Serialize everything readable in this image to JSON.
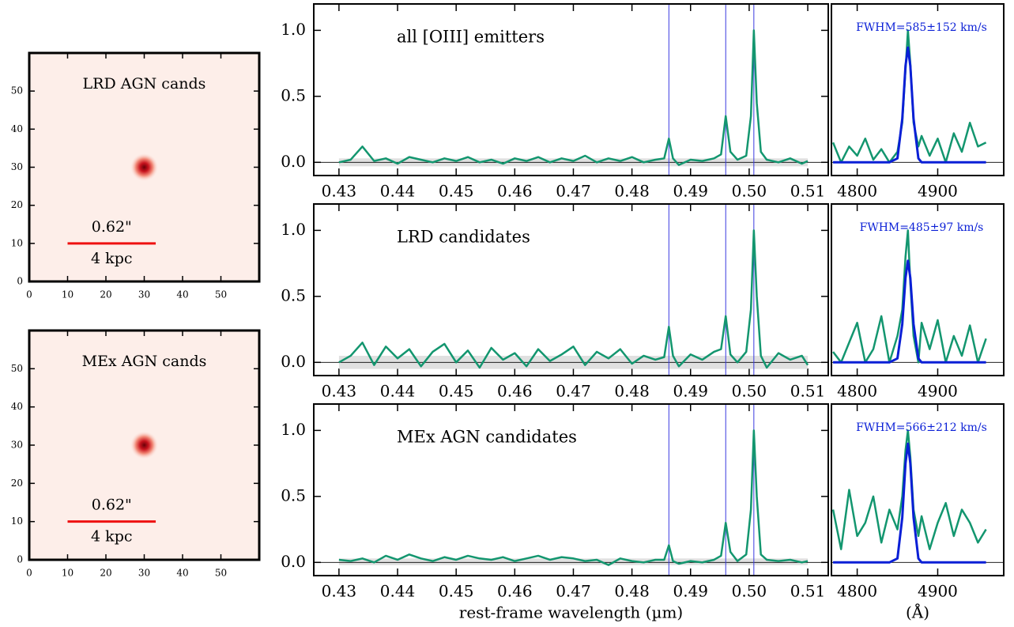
{
  "chart_data": [
    {
      "type": "image",
      "title": "LRD AGN cands",
      "xlim": [
        0,
        60
      ],
      "ylim": [
        0,
        60
      ],
      "xticks": [
        0,
        10,
        20,
        30,
        40,
        50
      ],
      "yticks": [
        0,
        10,
        20,
        30,
        40,
        50
      ],
      "source": {
        "x": 30,
        "y": 30
      },
      "scalebar": {
        "x": [
          10,
          33
        ],
        "y": 10,
        "label_top": "0.62\"",
        "label_bottom": "4 kpc",
        "color": "#ee1111"
      }
    },
    {
      "type": "image",
      "title": "MEx AGN cands",
      "xlim": [
        0,
        60
      ],
      "ylim": [
        0,
        60
      ],
      "xticks": [
        0,
        10,
        20,
        30,
        40,
        50
      ],
      "yticks": [
        0,
        10,
        20,
        30,
        40,
        50
      ],
      "source": {
        "x": 30,
        "y": 30
      },
      "scalebar": {
        "x": [
          10,
          33
        ],
        "y": 10,
        "label_top": "0.62\"",
        "label_bottom": "4 kpc",
        "color": "#ee1111"
      }
    },
    {
      "type": "line",
      "title": "all [OIII] emitters",
      "xlim": [
        0.4257,
        0.5135
      ],
      "ylim": [
        -0.1,
        1.2
      ],
      "xticks": [
        0.43,
        0.44,
        0.45,
        0.46,
        0.47,
        0.48,
        0.49,
        {
          "value": 0.5,
          "label": "0.50"
        },
        0.51
      ],
      "yticks": [
        {
          "value": 0,
          "label": "0.0"
        },
        {
          "value": 0.5,
          "label": "0.5"
        },
        {
          "value": 1,
          "label": "1.0"
        }
      ],
      "vlines": [
        0.4863,
        0.496,
        0.5008
      ],
      "band": {
        "x": [
          0.43,
          0.51
        ],
        "y": [
          -0.03,
          0.03
        ]
      },
      "color": "#13966f",
      "x": [
        0.43,
        0.432,
        0.434,
        0.436,
        0.438,
        0.44,
        0.442,
        0.444,
        0.446,
        0.448,
        0.45,
        0.452,
        0.454,
        0.456,
        0.458,
        0.46,
        0.462,
        0.464,
        0.466,
        0.468,
        0.47,
        0.472,
        0.474,
        0.476,
        0.478,
        0.48,
        0.482,
        0.484,
        0.4855,
        0.4863,
        0.487,
        0.488,
        0.49,
        0.492,
        0.494,
        0.4952,
        0.496,
        0.4968,
        0.498,
        0.4995,
        0.5003,
        0.5008,
        0.5013,
        0.502,
        0.503,
        0.505,
        0.507,
        0.509,
        0.51
      ],
      "values": [
        0.0,
        0.02,
        0.12,
        0.01,
        0.03,
        -0.01,
        0.04,
        0.02,
        0.0,
        0.03,
        0.01,
        0.04,
        0.0,
        0.02,
        -0.01,
        0.03,
        0.01,
        0.04,
        0.0,
        0.03,
        0.01,
        0.05,
        0.0,
        0.03,
        0.01,
        0.04,
        0.0,
        0.02,
        0.03,
        0.18,
        0.03,
        -0.02,
        0.02,
        0.01,
        0.03,
        0.06,
        0.35,
        0.08,
        0.02,
        0.05,
        0.35,
        1.0,
        0.45,
        0.08,
        0.02,
        0.0,
        0.03,
        -0.01,
        0.01
      ]
    },
    {
      "type": "zoom",
      "annotation": "FWHM=585±152 km/s",
      "xlim": [
        4768,
        4982
      ],
      "ylim": [
        -0.1,
        1.2
      ],
      "xticks": [
        4800,
        4900
      ],
      "x": [
        4770,
        4780,
        4790,
        4800,
        4810,
        4820,
        4830,
        4840,
        4850,
        4856,
        4860,
        4863,
        4866,
        4870,
        4876,
        4880,
        4890,
        4900,
        4910,
        4920,
        4930,
        4940,
        4950,
        4960
      ],
      "series": [
        {
          "color": "#13966f",
          "values": [
            0.15,
            0.0,
            0.12,
            0.05,
            0.18,
            0.02,
            0.1,
            0.0,
            0.08,
            0.3,
            0.7,
            1.0,
            0.75,
            0.3,
            0.12,
            0.2,
            0.05,
            0.18,
            0.0,
            0.22,
            0.08,
            0.3,
            0.12,
            0.15
          ]
        },
        {
          "color": "#0a1fd6",
          "values": [
            0,
            0,
            0,
            0,
            0,
            0,
            0,
            0,
            0.03,
            0.33,
            0.73,
            0.87,
            0.73,
            0.33,
            0.03,
            0,
            0,
            0,
            0,
            0,
            0,
            0,
            0,
            0
          ]
        }
      ]
    },
    {
      "type": "line",
      "title": "LRD candidates",
      "xlim": [
        0.4257,
        0.5135
      ],
      "ylim": [
        -0.1,
        1.2
      ],
      "xticks": [
        0.43,
        0.44,
        0.45,
        0.46,
        0.47,
        0.48,
        0.49,
        {
          "value": 0.5,
          "label": "0.50"
        },
        0.51
      ],
      "yticks": [
        {
          "value": 0,
          "label": "0.0"
        },
        {
          "value": 0.5,
          "label": "0.5"
        },
        {
          "value": 1,
          "label": "1.0"
        }
      ],
      "vlines": [
        0.4863,
        0.496,
        0.5008
      ],
      "band": {
        "x": [
          0.43,
          0.51
        ],
        "y": [
          -0.05,
          0.05
        ]
      },
      "color": "#13966f",
      "x": [
        0.43,
        0.432,
        0.434,
        0.436,
        0.438,
        0.44,
        0.442,
        0.444,
        0.446,
        0.448,
        0.45,
        0.452,
        0.454,
        0.456,
        0.458,
        0.46,
        0.462,
        0.464,
        0.466,
        0.468,
        0.47,
        0.472,
        0.474,
        0.476,
        0.478,
        0.48,
        0.482,
        0.484,
        0.4855,
        0.4863,
        0.487,
        0.488,
        0.49,
        0.492,
        0.494,
        0.4952,
        0.496,
        0.4968,
        0.498,
        0.4995,
        0.5003,
        0.5008,
        0.5013,
        0.502,
        0.503,
        0.505,
        0.507,
        0.509,
        0.51
      ],
      "values": [
        0.0,
        0.05,
        0.15,
        -0.02,
        0.12,
        0.03,
        0.1,
        -0.03,
        0.08,
        0.14,
        0.0,
        0.09,
        -0.04,
        0.11,
        0.02,
        0.07,
        -0.03,
        0.1,
        0.01,
        0.06,
        0.12,
        -0.02,
        0.08,
        0.03,
        0.1,
        -0.01,
        0.05,
        0.02,
        0.04,
        0.27,
        0.05,
        -0.03,
        0.06,
        0.02,
        0.08,
        0.1,
        0.35,
        0.06,
        0.0,
        0.08,
        0.4,
        1.0,
        0.5,
        0.05,
        -0.04,
        0.07,
        0.02,
        0.05,
        -0.02
      ]
    },
    {
      "type": "zoom",
      "annotation": "FWHM=485±97 km/s",
      "xlim": [
        4768,
        4982
      ],
      "ylim": [
        -0.1,
        1.2
      ],
      "xticks": [
        4800,
        4900
      ],
      "x": [
        4770,
        4780,
        4790,
        4800,
        4810,
        4820,
        4830,
        4840,
        4850,
        4856,
        4860,
        4863,
        4866,
        4870,
        4876,
        4880,
        4890,
        4900,
        4910,
        4920,
        4930,
        4940,
        4950,
        4960
      ],
      "series": [
        {
          "color": "#13966f",
          "values": [
            0.08,
            0.0,
            0.15,
            0.3,
            0.0,
            0.1,
            0.35,
            0.0,
            0.2,
            0.4,
            0.8,
            1.0,
            0.6,
            0.2,
            0.0,
            0.3,
            0.1,
            0.32,
            0.0,
            0.2,
            0.05,
            0.28,
            0.0,
            0.18
          ]
        },
        {
          "color": "#0a1fd6",
          "values": [
            0,
            0,
            0,
            0,
            0,
            0,
            0,
            0,
            0.03,
            0.29,
            0.64,
            0.77,
            0.64,
            0.29,
            0.03,
            0,
            0,
            0,
            0,
            0,
            0,
            0,
            0,
            0
          ]
        }
      ]
    },
    {
      "type": "line",
      "title": "MEx AGN candidates",
      "xlabel": "rest-frame wavelength (µm)",
      "xlim": [
        0.4257,
        0.5135
      ],
      "ylim": [
        -0.1,
        1.2
      ],
      "xticks": [
        0.43,
        0.44,
        0.45,
        0.46,
        0.47,
        0.48,
        0.49,
        {
          "value": 0.5,
          "label": "0.50"
        },
        0.51
      ],
      "yticks": [
        {
          "value": 0,
          "label": "0.0"
        },
        {
          "value": 0.5,
          "label": "0.5"
        },
        {
          "value": 1,
          "label": "1.0"
        }
      ],
      "vlines": [
        0.4863,
        0.496,
        0.5008
      ],
      "band": {
        "x": [
          0.43,
          0.51
        ],
        "y": [
          -0.02,
          0.03
        ]
      },
      "color": "#13966f",
      "x": [
        0.43,
        0.432,
        0.434,
        0.436,
        0.438,
        0.44,
        0.442,
        0.444,
        0.446,
        0.448,
        0.45,
        0.452,
        0.454,
        0.456,
        0.458,
        0.46,
        0.462,
        0.464,
        0.466,
        0.468,
        0.47,
        0.472,
        0.474,
        0.476,
        0.478,
        0.48,
        0.482,
        0.484,
        0.4855,
        0.4863,
        0.487,
        0.488,
        0.49,
        0.492,
        0.494,
        0.4952,
        0.496,
        0.4968,
        0.498,
        0.4995,
        0.5003,
        0.5008,
        0.5013,
        0.502,
        0.503,
        0.505,
        0.507,
        0.509,
        0.51
      ],
      "values": [
        0.02,
        0.01,
        0.03,
        0.0,
        0.05,
        0.02,
        0.06,
        0.03,
        0.01,
        0.04,
        0.02,
        0.05,
        0.03,
        0.02,
        0.04,
        0.01,
        0.03,
        0.05,
        0.02,
        0.04,
        0.03,
        0.01,
        0.02,
        -0.02,
        0.03,
        0.01,
        0.0,
        0.02,
        0.02,
        0.13,
        0.01,
        -0.01,
        0.01,
        0.0,
        0.02,
        0.05,
        0.3,
        0.08,
        0.01,
        0.06,
        0.4,
        1.0,
        0.5,
        0.06,
        0.02,
        0.01,
        0.02,
        0.0,
        0.01
      ]
    },
    {
      "type": "zoom",
      "annotation": "FWHM=566±212 km/s",
      "xlabel": "(Å)",
      "xlim": [
        4768,
        4982
      ],
      "ylim": [
        -0.1,
        1.2
      ],
      "xticks": [
        4800,
        4900
      ],
      "x": [
        4770,
        4780,
        4790,
        4800,
        4810,
        4820,
        4830,
        4840,
        4850,
        4856,
        4860,
        4863,
        4866,
        4870,
        4876,
        4880,
        4890,
        4900,
        4910,
        4920,
        4930,
        4940,
        4950,
        4960
      ],
      "series": [
        {
          "color": "#13966f",
          "values": [
            0.4,
            0.1,
            0.55,
            0.2,
            0.3,
            0.5,
            0.15,
            0.4,
            0.25,
            0.5,
            0.85,
            1.0,
            0.8,
            0.4,
            0.2,
            0.35,
            0.1,
            0.3,
            0.45,
            0.2,
            0.4,
            0.3,
            0.15,
            0.25
          ]
        },
        {
          "color": "#0a1fd6",
          "values": [
            0,
            0,
            0,
            0,
            0,
            0,
            0,
            0,
            0.03,
            0.34,
            0.75,
            0.9,
            0.75,
            0.34,
            0.03,
            0,
            0,
            0,
            0,
            0,
            0,
            0,
            0,
            0
          ]
        }
      ]
    }
  ]
}
